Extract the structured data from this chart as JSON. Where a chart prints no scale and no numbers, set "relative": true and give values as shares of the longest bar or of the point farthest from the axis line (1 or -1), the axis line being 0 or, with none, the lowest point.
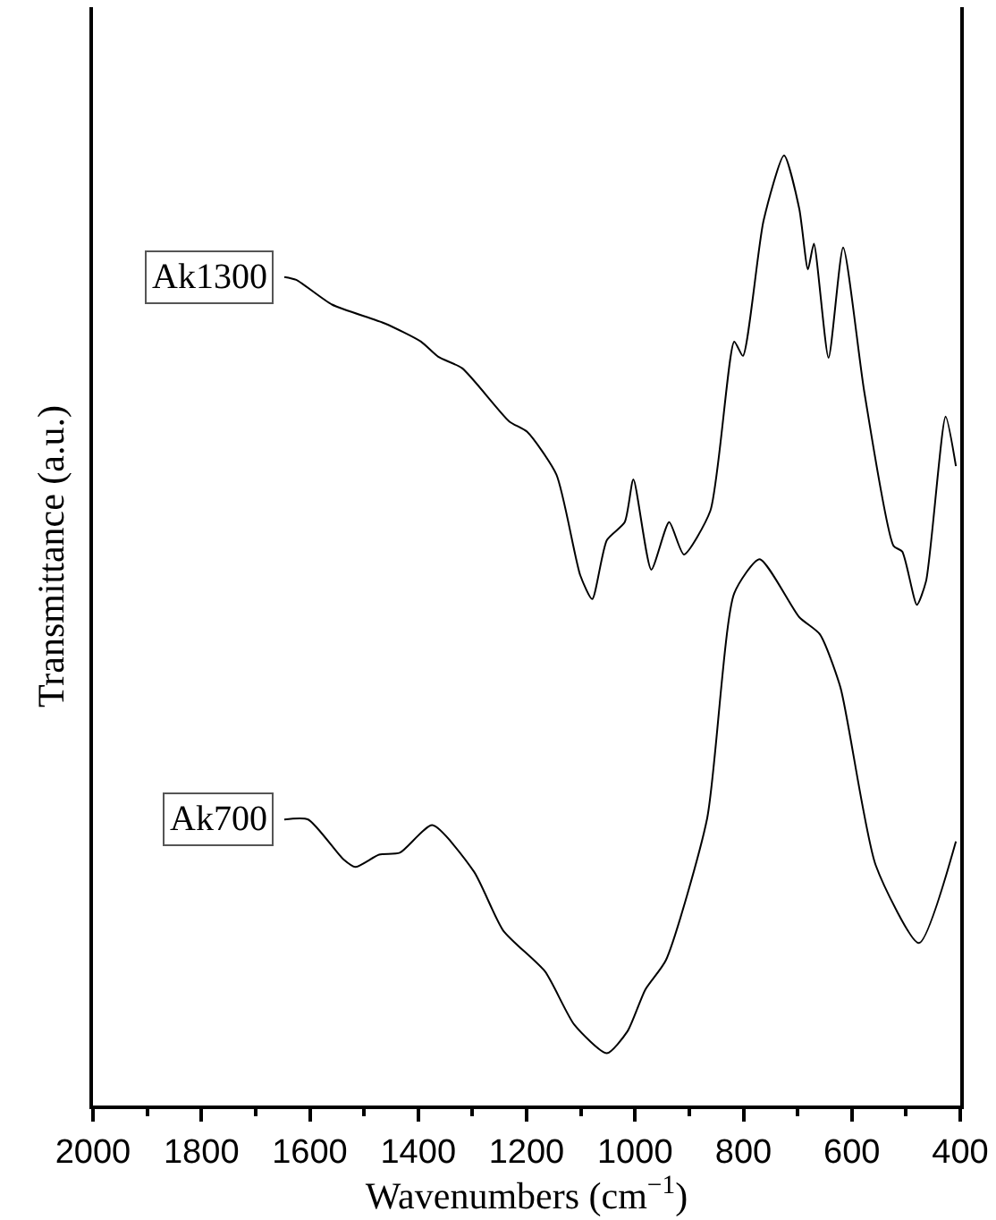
{
  "chart_data": {
    "type": "line",
    "relative": true,
    "xlabel": "Wavenumbers (cm$^{−1}$)",
    "ylabel": "Transmittance (a.u.)",
    "xlim": [
      2000,
      400
    ],
    "xticks": [
      2000,
      1800,
      1600,
      1400,
      1200,
      1000,
      800,
      600,
      400
    ],
    "legend": false,
    "marker": "none",
    "line_style": "solid",
    "tick_labels": "x",
    "series": [
      {
        "name": "Ak1300",
        "color": "#000000",
        "x": [
          1647,
          1625,
          1559,
          1461,
          1395,
          1363,
          1319,
          1232,
          1199,
          1145,
          1101,
          1079,
          1052,
          1019,
          1003,
          970,
          937,
          910,
          861,
          817,
          801,
          763,
          725,
          697,
          681,
          670,
          643,
          616,
          577,
          523,
          507,
          480,
          463,
          427,
          408
        ],
        "values": [
          0.872,
          0.869,
          0.843,
          0.823,
          0.804,
          0.788,
          0.776,
          0.72,
          0.709,
          0.664,
          0.558,
          0.533,
          0.595,
          0.614,
          0.659,
          0.564,
          0.614,
          0.58,
          0.626,
          0.804,
          0.789,
          0.931,
          1.0,
          0.944,
          0.88,
          0.907,
          0.787,
          0.903,
          0.751,
          0.589,
          0.583,
          0.527,
          0.552,
          0.725,
          0.673
        ]
      },
      {
        "name": "Ak700",
        "color": "#000000",
        "x": [
          1647,
          1603,
          1538,
          1516,
          1472,
          1434,
          1374,
          1297,
          1243,
          1166,
          1112,
          1052,
          1014,
          981,
          943,
          867,
          817,
          770,
          697,
          659,
          621,
          556,
          476,
          408
        ],
        "values": [
          0.301,
          0.301,
          0.259,
          0.251,
          0.264,
          0.266,
          0.295,
          0.246,
          0.184,
          0.141,
          0.085,
          0.055,
          0.078,
          0.122,
          0.153,
          0.302,
          0.539,
          0.575,
          0.514,
          0.496,
          0.44,
          0.253,
          0.171,
          0.278
        ]
      }
    ]
  }
}
